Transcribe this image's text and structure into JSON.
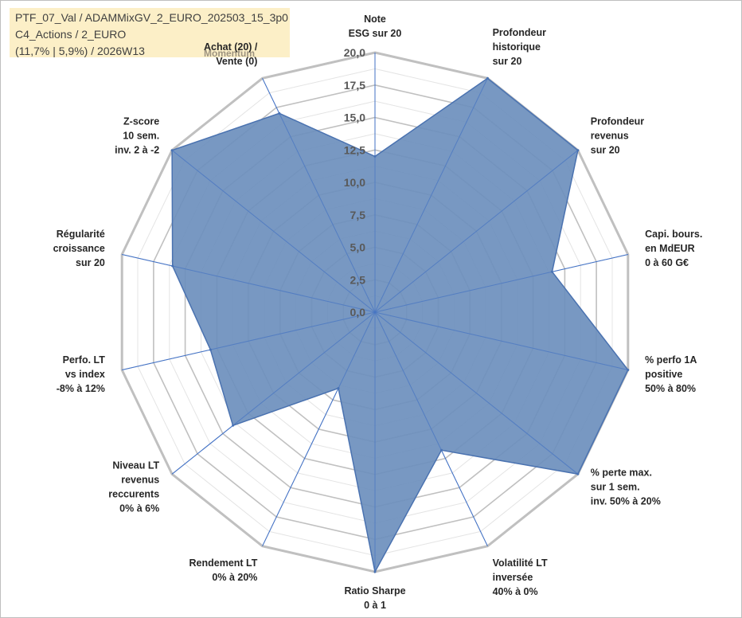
{
  "header": {
    "line1": "PTF_07_Val / ADAMMixGV_2_EURO_202503_15_3p0",
    "line2": "C4_Actions / 2_EURO",
    "line3": "(11,7% | 5,9%) / 2026W13"
  },
  "colors": {
    "fill": "#6c8fbd",
    "stroke": "#4a72b0",
    "grid": "#bfbfbf",
    "spoke": "#4472c4"
  },
  "chart_data": {
    "type": "radar",
    "title": "",
    "rmin": 0,
    "rmax": 20,
    "ticks": [
      "0,0",
      "2,5",
      "5,0",
      "7,5",
      "10,0",
      "12,5",
      "15,0",
      "17,5",
      "20,0"
    ],
    "group_label": "Momentum",
    "axes": [
      {
        "lines": [
          "Note",
          "ESG sur 20"
        ],
        "value": 12.0
      },
      {
        "lines": [
          "Profondeur",
          "historique",
          "sur 20"
        ],
        "value": 20.0
      },
      {
        "lines": [
          "Profondeur",
          "revenus",
          "sur 20"
        ],
        "value": 20.0
      },
      {
        "lines": [
          "Capi. bours.",
          "en MdEUR",
          "0 à 60 G€"
        ],
        "value": 14.0
      },
      {
        "lines": [
          "% perfo 1A",
          "positive",
          "50% à 80%"
        ],
        "value": 20.0
      },
      {
        "lines": [
          "% perte max.",
          "sur 1 sem.",
          "inv. 50% à 20%"
        ],
        "value": 20.0
      },
      {
        "lines": [
          "Volatilité LT",
          "inversée",
          "40% à 0%"
        ],
        "value": 11.8
      },
      {
        "lines": [
          "Ratio Sharpe",
          "0 à 1"
        ],
        "value": 20.0
      },
      {
        "lines": [
          "Rendement LT",
          "0% à 20%"
        ],
        "value": 6.5
      },
      {
        "lines": [
          "Niveau LT",
          "revenus",
          "reccurents",
          "0% à 6%"
        ],
        "value": 14.0
      },
      {
        "lines": [
          "Perfo. LT",
          "vs index",
          "-8% à 12%"
        ],
        "value": 13.0
      },
      {
        "lines": [
          "Régularité",
          "croissance",
          "sur 20"
        ],
        "value": 16.0
      },
      {
        "lines": [
          "Z-score",
          "10 sem.",
          "inv. 2 à -2"
        ],
        "value": 20.0
      },
      {
        "lines": [
          "Achat (20) /",
          "Vente (0)"
        ],
        "value": 17.0
      }
    ]
  }
}
